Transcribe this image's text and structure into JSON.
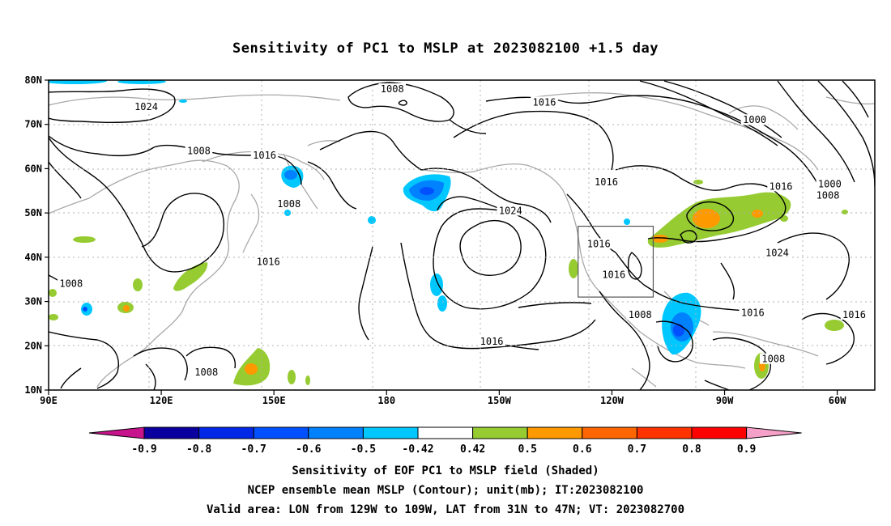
{
  "title": "Sensitivity of PC1 to MSLP at 2023082100 +1.5 day",
  "map": {
    "lon_range": [
      90,
      310
    ],
    "lat_range": [
      10,
      80
    ],
    "lat_ticks": [
      {
        "lat": 80,
        "label": "80N"
      },
      {
        "lat": 70,
        "label": "70N"
      },
      {
        "lat": 60,
        "label": "60N"
      },
      {
        "lat": 50,
        "label": "50N"
      },
      {
        "lat": 40,
        "label": "40N"
      },
      {
        "lat": 30,
        "label": "30N"
      },
      {
        "lat": 20,
        "label": "20N"
      },
      {
        "lat": 10,
        "label": "10N"
      }
    ],
    "lon_ticks": [
      {
        "lon": 90,
        "label": "90E"
      },
      {
        "lon": 120,
        "label": "120E"
      },
      {
        "lon": 150,
        "label": "150E"
      },
      {
        "lon": 180,
        "label": "180"
      },
      {
        "lon": 210,
        "label": "150W"
      },
      {
        "lon": 240,
        "label": "120W"
      },
      {
        "lon": 270,
        "label": "90W"
      },
      {
        "lon": 300,
        "label": "60W"
      }
    ],
    "valid_box": {
      "lon": [
        231,
        251
      ],
      "lat": [
        31,
        47
      ]
    },
    "contour_labels": [
      {
        "text": "1008",
        "lon": 181.5,
        "lat": 78
      },
      {
        "text": "1024",
        "lon": 116,
        "lat": 74
      },
      {
        "text": "1016",
        "lon": 222,
        "lat": 75
      },
      {
        "text": "1000",
        "lon": 278,
        "lat": 71
      },
      {
        "text": "1008",
        "lon": 130,
        "lat": 64
      },
      {
        "text": "1016",
        "lon": 147.5,
        "lat": 63
      },
      {
        "text": "1016",
        "lon": 238.5,
        "lat": 57
      },
      {
        "text": "1016",
        "lon": 285,
        "lat": 56
      },
      {
        "text": "1000",
        "lon": 298,
        "lat": 56.5
      },
      {
        "text": "1008",
        "lon": 297.5,
        "lat": 54
      },
      {
        "text": "1008",
        "lon": 154,
        "lat": 52
      },
      {
        "text": "1024",
        "lon": 213,
        "lat": 50.5
      },
      {
        "text": "1016",
        "lon": 236.5,
        "lat": 43
      },
      {
        "text": "1024",
        "lon": 284,
        "lat": 41
      },
      {
        "text": "1016",
        "lon": 148.5,
        "lat": 39
      },
      {
        "text": "1016",
        "lon": 240.5,
        "lat": 36
      },
      {
        "text": "1008",
        "lon": 96,
        "lat": 34
      },
      {
        "text": "1008",
        "lon": 247.5,
        "lat": 27
      },
      {
        "text": "1016",
        "lon": 277.5,
        "lat": 27.5
      },
      {
        "text": "1016",
        "lon": 304.5,
        "lat": 27
      },
      {
        "text": "1016",
        "lon": 208,
        "lat": 21
      },
      {
        "text": "1008",
        "lon": 283,
        "lat": 17
      },
      {
        "text": "1008",
        "lon": 132,
        "lat": 14
      }
    ]
  },
  "colorbar": {
    "labels": [
      "-0.9",
      "-0.8",
      "-0.7",
      "-0.6",
      "-0.5",
      "-0.42",
      "0.42",
      "0.5",
      "0.6",
      "0.7",
      "0.8",
      "0.9"
    ],
    "colors": [
      "#0a00a0",
      "#0028e6",
      "#0050ff",
      "#0082ff",
      "#00c8ff",
      "#ffffff",
      "#96cc32",
      "#ff9900",
      "#ff6600",
      "#ff3300",
      "#ff0000"
    ],
    "low_end_color": "#c8148c",
    "high_end_color": "#f5a0c8"
  },
  "footer": {
    "line1": "Sensitivity of EOF PC1 to MSLP field (Shaded)",
    "line2": "NCEP ensemble mean MSLP (Contour); unit(mb); IT:2023082100",
    "line3": "Valid area: LON from 129W to 109W, LAT from 31N to 47N; VT: 2023082700"
  }
}
